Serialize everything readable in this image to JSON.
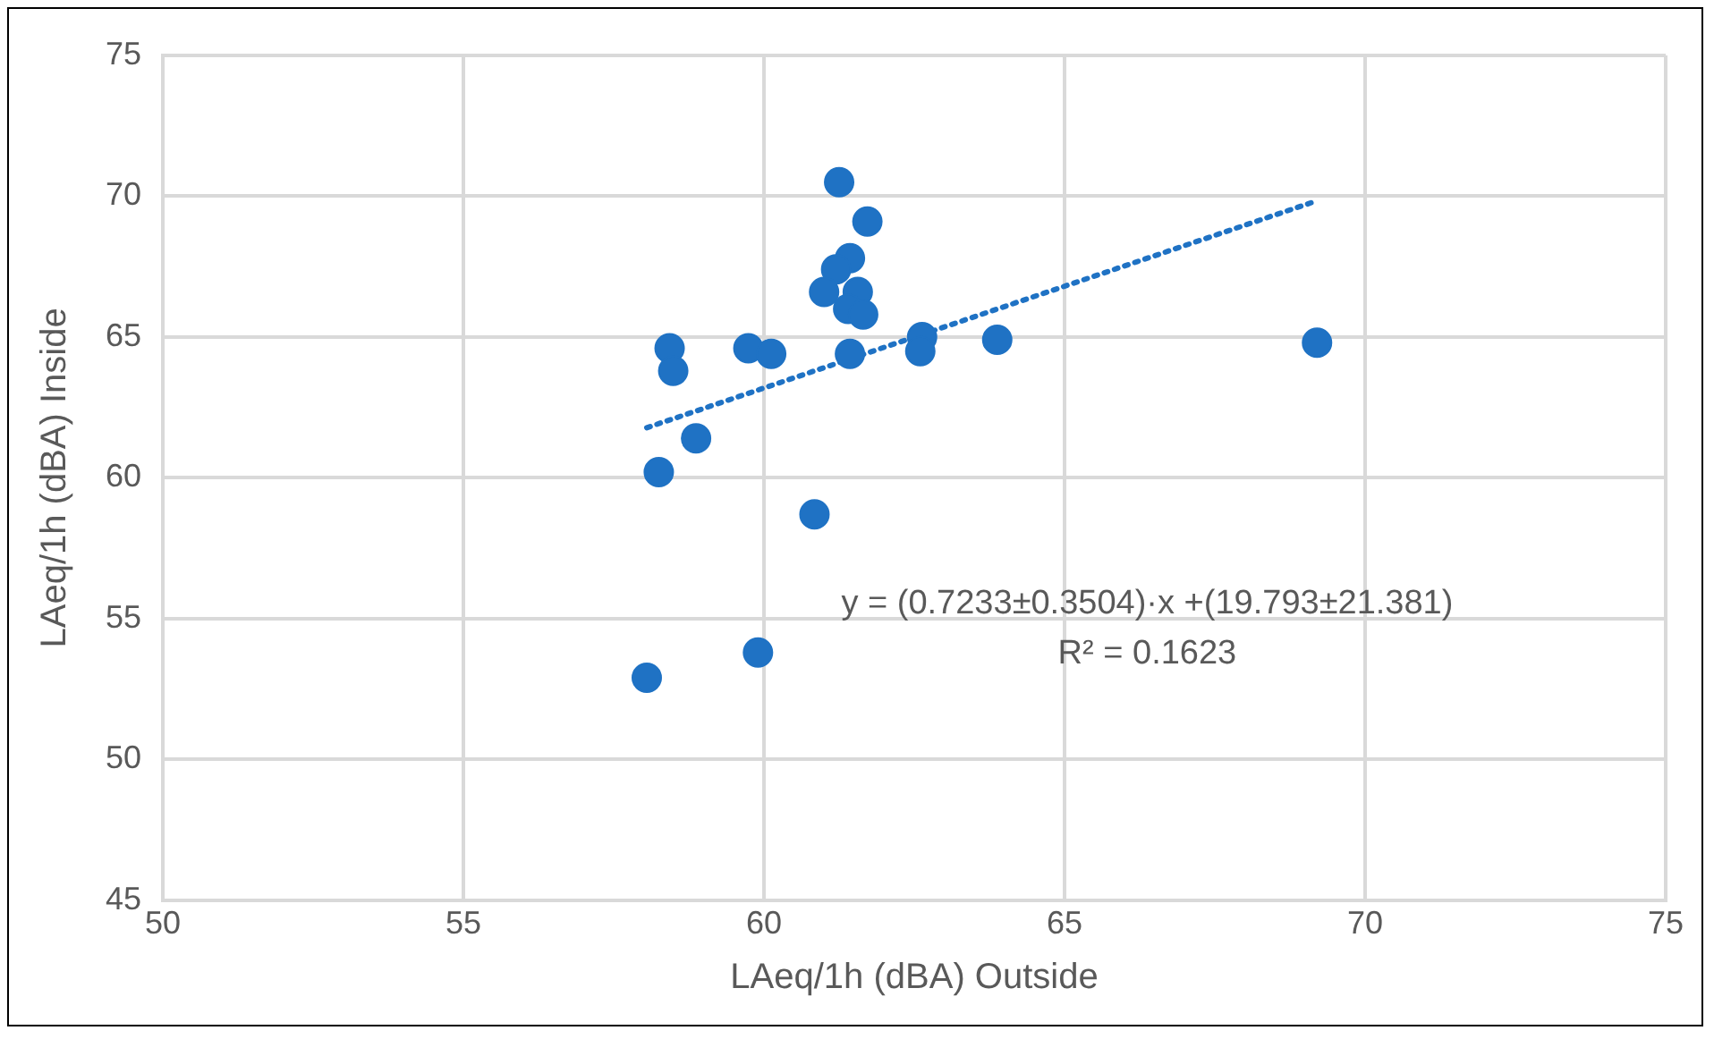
{
  "chart_data": {
    "type": "scatter",
    "xlabel": "LAeq/1h (dBA) Outside",
    "ylabel": "LAeq/1h (dBA) Inside",
    "xlim": [
      50,
      75
    ],
    "xticks": [
      50,
      55,
      60,
      65,
      70,
      75
    ],
    "ylim": [
      45,
      75
    ],
    "yticks": [
      45,
      50,
      55,
      60,
      65,
      70,
      75
    ],
    "grid": true,
    "legend": false,
    "marker": "circle",
    "series": [
      {
        "color": "#1f72c4",
        "x": [
          61.25,
          61.72,
          61.43,
          61.2,
          61.0,
          61.56,
          61.4,
          61.65,
          58.43,
          58.49,
          59.74,
          60.12,
          61.43,
          62.63,
          62.6,
          63.88,
          69.2,
          58.87,
          58.25,
          60.84,
          58.05,
          59.9
        ],
        "values": [
          70.5,
          69.1,
          67.8,
          67.4,
          66.6,
          66.6,
          66.0,
          65.8,
          64.6,
          63.8,
          64.6,
          64.4,
          64.4,
          65.0,
          64.5,
          64.9,
          64.8,
          61.4,
          60.2,
          58.7,
          52.9,
          53.8
        ]
      },
      {
        "type": "line",
        "color": "#1f72c4",
        "line_style": "dotted",
        "marker": "none",
        "x": [
          58.05,
          69.2
        ],
        "values": [
          61.78,
          69.84
        ]
      }
    ],
    "annotations": [
      "y = (0.7233±0.3504)·x +(19.793±21.381)",
      "R² = 0.1623"
    ]
  }
}
